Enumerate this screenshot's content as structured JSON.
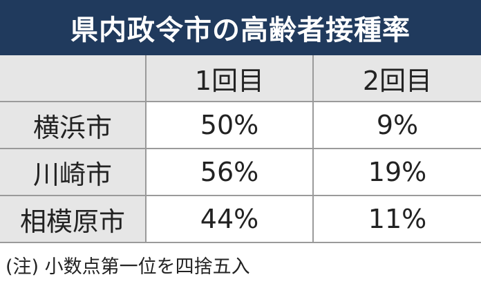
{
  "title": "県内政令市の高齢者接種率",
  "table": {
    "header": [
      "",
      "1回目",
      "2回目"
    ],
    "rows": [
      [
        "横浜市",
        "50%",
        "9%"
      ],
      [
        "川崎市",
        "56%",
        "19%"
      ],
      [
        "相模原市",
        "44%",
        "11%"
      ]
    ]
  },
  "note": "(注) 小数点第一位を四捨五入"
}
